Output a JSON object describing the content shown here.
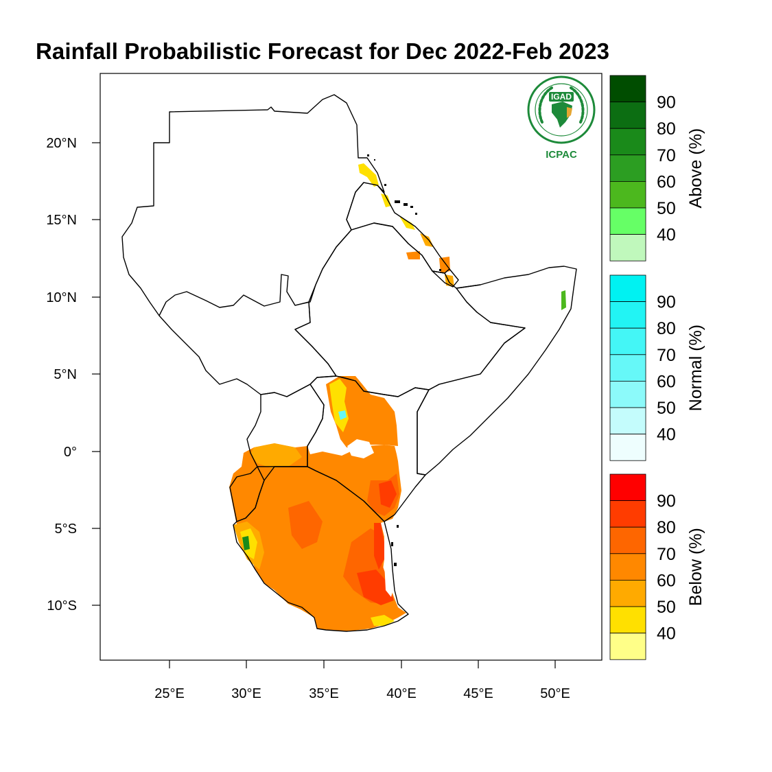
{
  "title": "Rainfall Probabilistic Forecast for Dec 2022-Feb 2023",
  "logo": {
    "org": "IGAD",
    "center": "ICPAC",
    "icon": "igad-seal-icon",
    "color": "#1d8a3a"
  },
  "axes": {
    "lon_ticks": [
      "25°E",
      "30°E",
      "35°E",
      "40°E",
      "45°E",
      "50°E"
    ],
    "lat_ticks": [
      "20°N",
      "15°N",
      "10°N",
      "5°N",
      "0°",
      "5°S",
      "10°S"
    ]
  },
  "colorbars": [
    {
      "name": "above",
      "title": "Above (%)",
      "labels": [
        "90",
        "80",
        "70",
        "60",
        "50",
        "40"
      ],
      "colors": [
        "#004d00",
        "#0c6e12",
        "#1a8a1a",
        "#2c9e22",
        "#4cb81e",
        "#66ff66",
        "#c0f8bc"
      ]
    },
    {
      "name": "normal",
      "title": "Normal (%)",
      "labels": [
        "90",
        "80",
        "70",
        "60",
        "50",
        "40"
      ],
      "colors": [
        "#00f2f2",
        "#22f4f4",
        "#44f6f6",
        "#66f8f8",
        "#8cfafa",
        "#c4fcfc",
        "#eefefe"
      ]
    },
    {
      "name": "below",
      "title": "Below (%)",
      "labels": [
        "90",
        "80",
        "70",
        "60",
        "50",
        "40"
      ],
      "colors": [
        "#ff0000",
        "#ff3c00",
        "#fe6600",
        "#ff8800",
        "#ffaa00",
        "#ffe000",
        "#ffff88"
      ]
    }
  ],
  "forecast_colors": {
    "below_80": "#ff3c00",
    "below_70": "#fe6600",
    "below_60": "#ff8800",
    "below_50": "#ffaa00",
    "below_40": "#ffe000",
    "normal_60": "#66f8f8",
    "above_70": "#1a8a1a",
    "above_50": "#4cb81e"
  }
}
